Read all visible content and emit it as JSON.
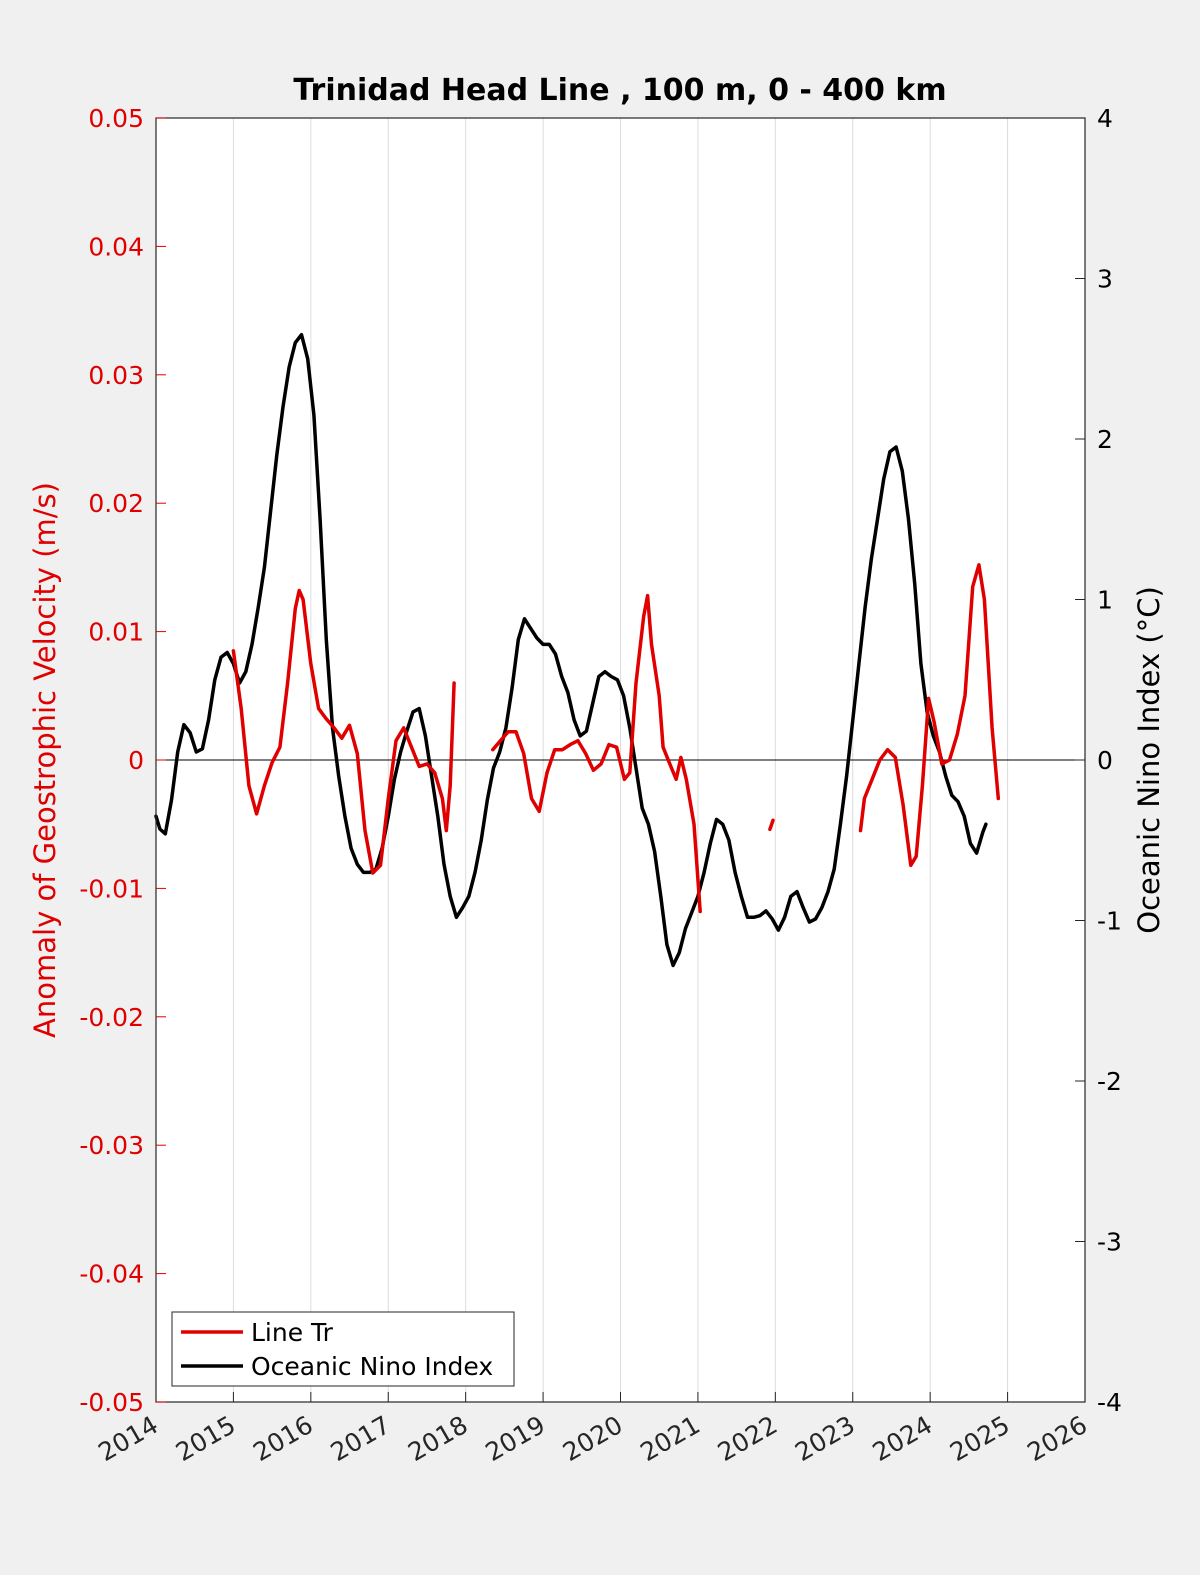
{
  "chart_data": {
    "type": "line",
    "title": "Trinidad Head Line , 100 m, 0 - 400 km",
    "xlabel": "",
    "ylabel_left": "Anomaly of Geostrophic Velocity (m/s)",
    "ylabel_right": "Oceanic Nino Index (°C)",
    "xlim": [
      2014,
      2026
    ],
    "ylim_left": [
      -0.05,
      0.05
    ],
    "ylim_right": [
      -4,
      4
    ],
    "x_ticks": [
      "2014",
      "2015",
      "2016",
      "2017",
      "2018",
      "2019",
      "2020",
      "2021",
      "2022",
      "2023",
      "2024",
      "2025",
      "2026"
    ],
    "left_ticks": [
      "-0.05",
      "-0.04",
      "-0.03",
      "-0.02",
      "-0.01",
      "0",
      "0.01",
      "0.02",
      "0.03",
      "0.04",
      "0.05"
    ],
    "right_ticks": [
      "-4",
      "-3",
      "-2",
      "-1",
      "0",
      "1",
      "2",
      "3",
      "4"
    ],
    "grid": "vertical",
    "legend_position": "bottom-left",
    "colors": {
      "line_tr": "#e00000",
      "oni": "#000000",
      "background": "#f0f0f0",
      "plot_bg": "#ffffff",
      "grid": "#dcdcdc"
    },
    "series": [
      {
        "name": "Line Tr",
        "axis": "left",
        "segments": [
          [
            [
              2015.0,
              0.0085
            ],
            [
              2015.1,
              0.004
            ],
            [
              2015.2,
              -0.002
            ],
            [
              2015.3,
              -0.0042
            ],
            [
              2015.4,
              -0.002
            ],
            [
              2015.5,
              -0.0002
            ],
            [
              2015.6,
              0.001
            ],
            [
              2015.7,
              0.006
            ],
            [
              2015.8,
              0.0118
            ],
            [
              2015.85,
              0.0132
            ],
            [
              2015.9,
              0.0125
            ],
            [
              2016.0,
              0.0075
            ],
            [
              2016.1,
              0.004
            ],
            [
              2016.2,
              0.0032
            ],
            [
              2016.3,
              0.0025
            ],
            [
              2016.4,
              0.0017
            ],
            [
              2016.5,
              0.0027
            ],
            [
              2016.6,
              0.0005
            ],
            [
              2016.7,
              -0.0055
            ],
            [
              2016.8,
              -0.0088
            ],
            [
              2016.9,
              -0.0082
            ],
            [
              2017.0,
              -0.003
            ],
            [
              2017.1,
              0.0015
            ],
            [
              2017.2,
              0.0025
            ],
            [
              2017.3,
              0.001
            ],
            [
              2017.4,
              -0.0005
            ],
            [
              2017.5,
              -0.0003
            ],
            [
              2017.6,
              -0.001
            ],
            [
              2017.7,
              -0.003
            ],
            [
              2017.75,
              -0.0055
            ],
            [
              2017.8,
              -0.002
            ],
            [
              2017.85,
              0.006
            ]
          ],
          [
            [
              2018.35,
              0.0008
            ],
            [
              2018.45,
              0.0015
            ],
            [
              2018.55,
              0.0022
            ],
            [
              2018.65,
              0.0022
            ],
            [
              2018.75,
              0.0005
            ],
            [
              2018.85,
              -0.003
            ],
            [
              2018.95,
              -0.004
            ],
            [
              2019.05,
              -0.001
            ],
            [
              2019.15,
              0.0008
            ],
            [
              2019.25,
              0.0008
            ],
            [
              2019.35,
              0.0012
            ],
            [
              2019.45,
              0.0015
            ],
            [
              2019.55,
              0.0005
            ],
            [
              2019.65,
              -0.0008
            ],
            [
              2019.75,
              -0.0003
            ],
            [
              2019.85,
              0.0012
            ],
            [
              2019.95,
              0.001
            ],
            [
              2020.05,
              -0.0015
            ],
            [
              2020.12,
              -0.001
            ],
            [
              2020.2,
              0.006
            ],
            [
              2020.3,
              0.0112
            ],
            [
              2020.35,
              0.0128
            ],
            [
              2020.4,
              0.009
            ],
            [
              2020.5,
              0.005
            ],
            [
              2020.55,
              0.001
            ],
            [
              2020.65,
              -0.0005
            ],
            [
              2020.72,
              -0.0015
            ],
            [
              2020.78,
              0.0002
            ],
            [
              2020.85,
              -0.0015
            ],
            [
              2020.95,
              -0.005
            ],
            [
              2021.03,
              -0.0118
            ]
          ],
          [
            [
              2021.93,
              -0.0054
            ],
            [
              2021.97,
              -0.0047
            ]
          ],
          [
            [
              2023.1,
              -0.0055
            ],
            [
              2023.15,
              -0.003
            ],
            [
              2023.25,
              -0.0015
            ],
            [
              2023.35,
              0.0
            ],
            [
              2023.45,
              0.0008
            ],
            [
              2023.55,
              0.0002
            ],
            [
              2023.65,
              -0.0035
            ],
            [
              2023.75,
              -0.0082
            ],
            [
              2023.82,
              -0.0075
            ],
            [
              2023.9,
              -0.002
            ],
            [
              2023.98,
              0.0048
            ],
            [
              2024.05,
              0.003
            ],
            [
              2024.15,
              -0.0003
            ],
            [
              2024.25,
              0.0
            ],
            [
              2024.35,
              0.002
            ],
            [
              2024.45,
              0.005
            ],
            [
              2024.55,
              0.0135
            ],
            [
              2024.63,
              0.0152
            ],
            [
              2024.7,
              0.0125
            ],
            [
              2024.8,
              0.0025
            ],
            [
              2024.88,
              -0.003
            ]
          ]
        ]
      },
      {
        "name": "Oceanic Nino Index",
        "axis": "right",
        "segments": [
          [
            [
              2014.0,
              -0.35
            ],
            [
              2014.05,
              -0.43
            ],
            [
              2014.12,
              -0.46
            ],
            [
              2014.2,
              -0.25
            ],
            [
              2014.28,
              0.05
            ],
            [
              2014.36,
              0.22
            ],
            [
              2014.44,
              0.17
            ],
            [
              2014.52,
              0.05
            ],
            [
              2014.6,
              0.07
            ],
            [
              2014.68,
              0.25
            ],
            [
              2014.76,
              0.5
            ],
            [
              2014.84,
              0.64
            ],
            [
              2014.92,
              0.67
            ],
            [
              2015.0,
              0.6
            ],
            [
              2015.08,
              0.48
            ],
            [
              2015.16,
              0.55
            ],
            [
              2015.24,
              0.72
            ],
            [
              2015.32,
              0.95
            ],
            [
              2015.4,
              1.2
            ],
            [
              2015.48,
              1.55
            ],
            [
              2015.56,
              1.9
            ],
            [
              2015.64,
              2.2
            ],
            [
              2015.72,
              2.45
            ],
            [
              2015.8,
              2.6
            ],
            [
              2015.88,
              2.65
            ],
            [
              2015.96,
              2.5
            ],
            [
              2016.04,
              2.15
            ],
            [
              2016.12,
              1.5
            ],
            [
              2016.2,
              0.75
            ],
            [
              2016.28,
              0.2
            ],
            [
              2016.36,
              -0.1
            ],
            [
              2016.44,
              -0.35
            ],
            [
              2016.52,
              -0.55
            ],
            [
              2016.6,
              -0.65
            ],
            [
              2016.68,
              -0.7
            ],
            [
              2016.76,
              -0.7
            ],
            [
              2016.84,
              -0.68
            ],
            [
              2016.92,
              -0.55
            ],
            [
              2017.0,
              -0.35
            ],
            [
              2017.08,
              -0.12
            ],
            [
              2017.16,
              0.05
            ],
            [
              2017.24,
              0.18
            ],
            [
              2017.32,
              0.3
            ],
            [
              2017.4,
              0.32
            ],
            [
              2017.48,
              0.15
            ],
            [
              2017.56,
              -0.1
            ],
            [
              2017.64,
              -0.35
            ],
            [
              2017.72,
              -0.65
            ],
            [
              2017.8,
              -0.85
            ],
            [
              2017.88,
              -0.98
            ],
            [
              2017.96,
              -0.92
            ],
            [
              2018.04,
              -0.85
            ],
            [
              2018.12,
              -0.7
            ],
            [
              2018.2,
              -0.5
            ],
            [
              2018.28,
              -0.25
            ],
            [
              2018.36,
              -0.05
            ],
            [
              2018.44,
              0.05
            ],
            [
              2018.52,
              0.2
            ],
            [
              2018.6,
              0.45
            ],
            [
              2018.68,
              0.75
            ],
            [
              2018.76,
              0.88
            ],
            [
              2018.84,
              0.82
            ],
            [
              2018.92,
              0.76
            ],
            [
              2019.0,
              0.72
            ],
            [
              2019.08,
              0.72
            ],
            [
              2019.16,
              0.66
            ],
            [
              2019.24,
              0.52
            ],
            [
              2019.32,
              0.42
            ],
            [
              2019.4,
              0.25
            ],
            [
              2019.48,
              0.15
            ],
            [
              2019.56,
              0.18
            ],
            [
              2019.64,
              0.35
            ],
            [
              2019.72,
              0.52
            ],
            [
              2019.8,
              0.55
            ],
            [
              2019.88,
              0.52
            ],
            [
              2019.96,
              0.5
            ],
            [
              2020.04,
              0.4
            ],
            [
              2020.12,
              0.2
            ],
            [
              2020.2,
              -0.05
            ],
            [
              2020.28,
              -0.3
            ],
            [
              2020.36,
              -0.4
            ],
            [
              2020.44,
              -0.57
            ],
            [
              2020.52,
              -0.85
            ],
            [
              2020.6,
              -1.15
            ],
            [
              2020.68,
              -1.28
            ],
            [
              2020.76,
              -1.2
            ],
            [
              2020.84,
              -1.05
            ],
            [
              2020.92,
              -0.95
            ],
            [
              2021.0,
              -0.85
            ],
            [
              2021.08,
              -0.7
            ],
            [
              2021.16,
              -0.52
            ],
            [
              2021.24,
              -0.37
            ],
            [
              2021.32,
              -0.4
            ],
            [
              2021.4,
              -0.5
            ],
            [
              2021.48,
              -0.7
            ],
            [
              2021.56,
              -0.85
            ],
            [
              2021.64,
              -0.98
            ],
            [
              2021.72,
              -0.98
            ],
            [
              2021.8,
              -0.97
            ],
            [
              2021.88,
              -0.94
            ],
            [
              2021.96,
              -0.99
            ],
            [
              2022.04,
              -1.06
            ],
            [
              2022.12,
              -0.98
            ],
            [
              2022.2,
              -0.85
            ],
            [
              2022.28,
              -0.82
            ],
            [
              2022.36,
              -0.92
            ],
            [
              2022.44,
              -1.01
            ],
            [
              2022.52,
              -0.99
            ],
            [
              2022.6,
              -0.92
            ],
            [
              2022.68,
              -0.82
            ],
            [
              2022.76,
              -0.68
            ],
            [
              2022.84,
              -0.4
            ],
            [
              2022.92,
              -0.1
            ],
            [
              2023.0,
              0.25
            ],
            [
              2023.08,
              0.6
            ],
            [
              2023.16,
              0.95
            ],
            [
              2023.24,
              1.25
            ],
            [
              2023.32,
              1.5
            ],
            [
              2023.4,
              1.75
            ],
            [
              2023.48,
              1.92
            ],
            [
              2023.56,
              1.95
            ],
            [
              2023.64,
              1.8
            ],
            [
              2023.72,
              1.5
            ],
            [
              2023.8,
              1.1
            ],
            [
              2023.88,
              0.6
            ],
            [
              2023.96,
              0.3
            ],
            [
              2024.04,
              0.15
            ],
            [
              2024.12,
              0.05
            ],
            [
              2024.2,
              -0.1
            ],
            [
              2024.28,
              -0.22
            ],
            [
              2024.36,
              -0.26
            ],
            [
              2024.44,
              -0.35
            ],
            [
              2024.52,
              -0.52
            ],
            [
              2024.6,
              -0.58
            ],
            [
              2024.68,
              -0.45
            ],
            [
              2024.72,
              -0.4
            ]
          ]
        ]
      }
    ]
  }
}
